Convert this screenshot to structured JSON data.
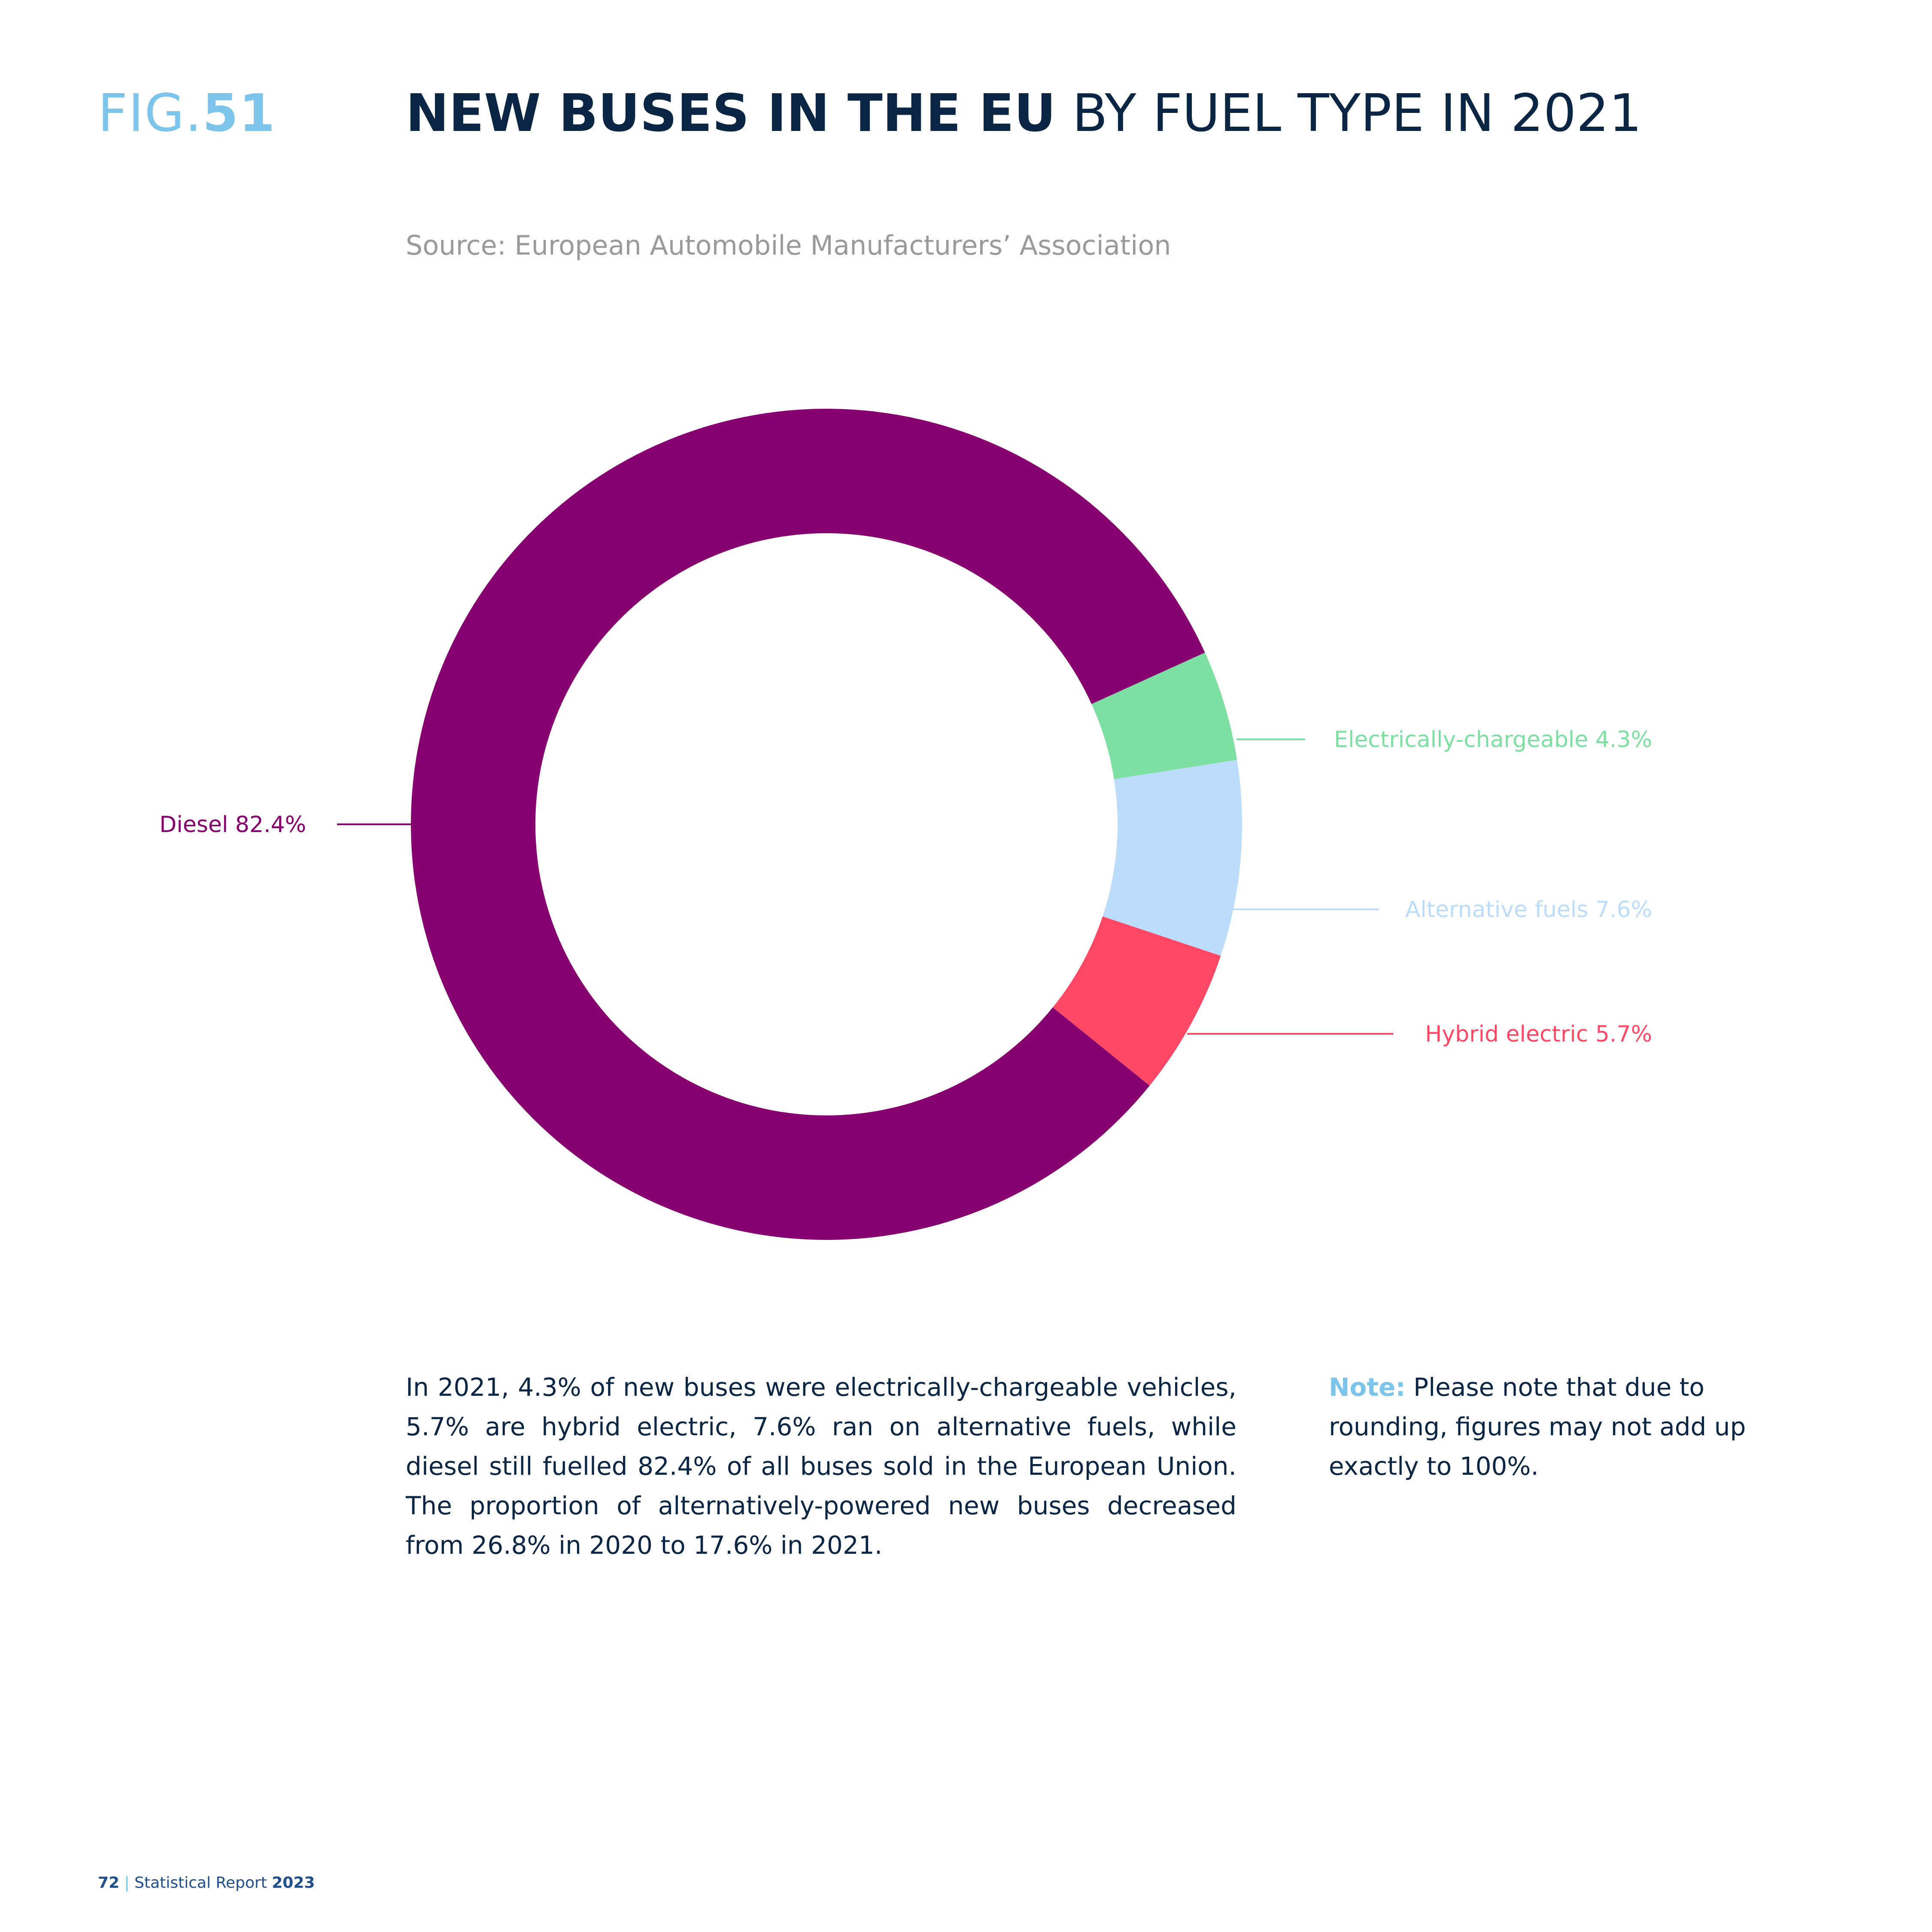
{
  "figure": {
    "prefix": "FIG.",
    "number": "51"
  },
  "title": {
    "bold": "NEW BUSES IN THE EU",
    "regular": " BY FUEL TYPE IN 2021"
  },
  "source": "Source: European Automobile Manufacturers’ Association",
  "chart_data": {
    "type": "pie",
    "style": "donut",
    "title": "NEW BUSES IN THE EU BY FUEL TYPE IN 2021",
    "series": [
      {
        "name": "Diesel",
        "value": 82.4,
        "label": "Diesel 82.4%",
        "color": "#870070"
      },
      {
        "name": "Electrically-chargeable",
        "value": 4.3,
        "label": "Electrically-chargeable 4.3%",
        "color": "#7ddfa1"
      },
      {
        "name": "Alternative fuels",
        "value": 7.6,
        "label": "Alternative fuels 7.6%",
        "color": "#bbddfb"
      },
      {
        "name": "Hybrid electric",
        "value": 5.7,
        "label": "Hybrid electric 5.7%",
        "color": "#ff4866"
      }
    ]
  },
  "body_text": "In 2021, 4.3% of new buses were electrically-chargeable vehicles, 5.7% are hybrid electric, 7.6% ran on alternative fuels, while diesel still fuelled 82.4% of all buses sold in the European Union. The proportion of alternatively-powered new buses decreased from 26.8% in 2020 to 17.6% in 2021.",
  "note": {
    "label": "Note:",
    "text": " Please note that due to rounding, figures may not add up exactly to 100%."
  },
  "footer": {
    "page": "72",
    "separator": " | ",
    "report": "Statistical Report ",
    "year": "2023"
  }
}
